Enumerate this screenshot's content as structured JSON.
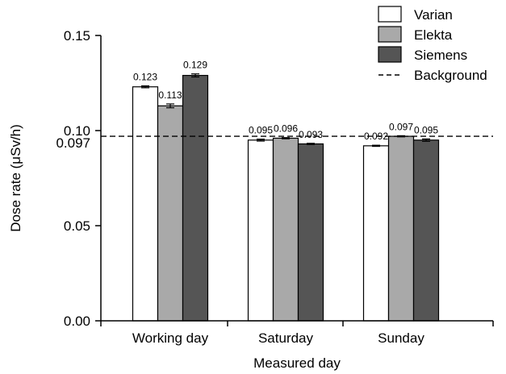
{
  "chart_data": {
    "type": "bar",
    "xlabel": "Measured day",
    "ylabel": "Dose rate (μSv/h)",
    "ylim": [
      0,
      0.15
    ],
    "yticks": [
      "0.00",
      "0.05",
      "0.10",
      "0.15"
    ],
    "extra_ytick": "0.097",
    "categories": [
      "Working day",
      "Saturday",
      "Sunday"
    ],
    "series": [
      {
        "name": "Varian",
        "color": "#ffffff",
        "values": [
          0.123,
          0.095,
          0.092
        ],
        "labels": [
          "0.123",
          "0.095",
          "0.092"
        ],
        "errors": [
          0.0005,
          0.0005,
          0.0003
        ]
      },
      {
        "name": "Elekta",
        "color": "#a9a9a9",
        "values": [
          0.113,
          0.096,
          0.097
        ],
        "labels": [
          "0.113",
          "0.096",
          "0.097"
        ],
        "errors": [
          0.001,
          0.0003,
          0.0003
        ]
      },
      {
        "name": "Siemens",
        "color": "#555555",
        "values": [
          0.129,
          0.093,
          0.095
        ],
        "labels": [
          "0.129",
          "0.093",
          "0.095"
        ],
        "errors": [
          0.0008,
          0.0003,
          0.0006
        ]
      }
    ],
    "background": {
      "name": "Background",
      "value": 0.097,
      "style": "dashed"
    },
    "legend": {
      "position": "top-right"
    },
    "grid": false
  }
}
